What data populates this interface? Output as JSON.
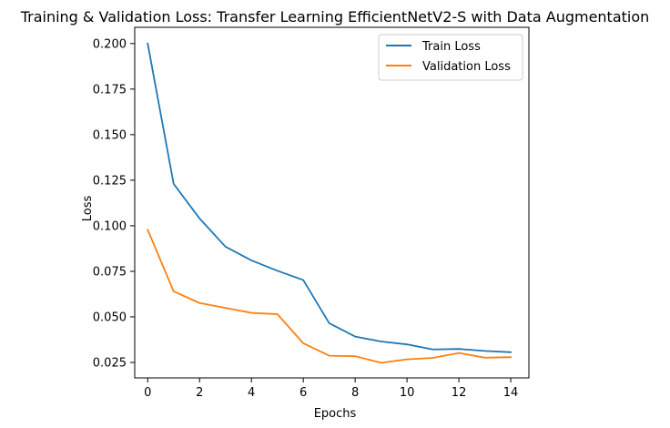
{
  "chart_data": {
    "type": "line",
    "title": "Training & Validation Loss: Transfer Learning EfficientNetV2-S with Data Augmentation",
    "xlabel": "Epochs",
    "ylabel": "Loss",
    "x": [
      0,
      1,
      2,
      3,
      4,
      5,
      6,
      7,
      8,
      9,
      10,
      11,
      12,
      13,
      14
    ],
    "xlim": [
      -0.5,
      14.7
    ],
    "ylim": [
      0.0165,
      0.2089
    ],
    "xticks": [
      0,
      2,
      4,
      6,
      8,
      10,
      12,
      14
    ],
    "yticks": [
      0.025,
      0.05,
      0.075,
      0.1,
      0.125,
      0.15,
      0.175,
      0.2
    ],
    "xtick_labels": [
      "0",
      "2",
      "4",
      "6",
      "8",
      "10",
      "12",
      "14"
    ],
    "ytick_labels": [
      "0.025",
      "0.050",
      "0.075",
      "0.100",
      "0.125",
      "0.150",
      "0.175",
      "0.200"
    ],
    "grid": false,
    "legend_position": "top-right",
    "series": [
      {
        "name": "Train Loss",
        "color": "#1f77b4",
        "values": [
          0.2,
          0.123,
          0.104,
          0.0885,
          0.081,
          0.0753,
          0.0702,
          0.0465,
          0.0392,
          0.0365,
          0.0349,
          0.0321,
          0.0324,
          0.0313,
          0.0306
        ]
      },
      {
        "name": "Validation Loss",
        "color": "#ff7f0e",
        "values": [
          0.0978,
          0.064,
          0.0576,
          0.0549,
          0.0522,
          0.0515,
          0.0355,
          0.0287,
          0.0284,
          0.0248,
          0.0267,
          0.0275,
          0.0302,
          0.0276,
          0.0279
        ]
      }
    ]
  }
}
